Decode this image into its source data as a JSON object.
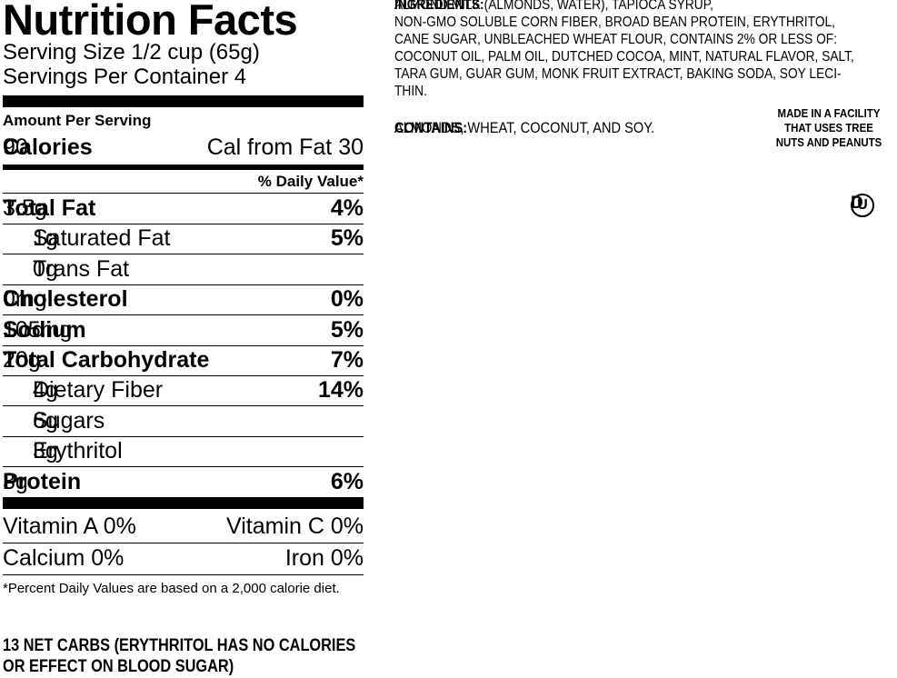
{
  "label": {
    "title": "Nutrition Facts",
    "serving_size": "Serving Size 1/2 cup (65g)",
    "servings_per_container": "Servings Per Container 4",
    "amount_per_serving": "Amount Per Serving",
    "calories": {
      "label": "Calories",
      "value": "90"
    },
    "cal_from_fat": "Cal from Fat 30",
    "daily_value_header": "% Daily Value*",
    "nutrients": [
      {
        "name": "Total Fat",
        "amount": "3.5g",
        "dv": "4%",
        "indent": false
      },
      {
        "name": "Saturated Fat",
        "amount": "1g",
        "dv": "5%",
        "indent": true
      },
      {
        "name": "Trans Fat",
        "amount": "0g",
        "indent": true
      },
      {
        "name": "Cholesterol",
        "amount": "0mg",
        "dv": "0%",
        "indent": false
      },
      {
        "name": "Sodium",
        "amount": "105mg",
        "dv": "5%",
        "indent": false
      },
      {
        "name": "Total Carbohydrate",
        "amount": "20g",
        "dv": "7%",
        "indent": false
      },
      {
        "name": "Dietary Fiber",
        "amount": "4g",
        "dv": "14%",
        "indent": true
      },
      {
        "name": "Sugars",
        "amount": "6g",
        "indent": true
      },
      {
        "name": "Erythritol",
        "amount": "3g",
        "indent": true
      },
      {
        "name": "Protein",
        "amount": "3g",
        "dv": "6%",
        "indent": false
      }
    ],
    "vitamins": [
      [
        "Vitamin A 0%",
        "Vitamin C 0%"
      ],
      [
        "Calcium 0%",
        "Iron 0%"
      ]
    ],
    "footnote": "*Percent Daily Values are based on a 2,000 calorie diet."
  },
  "net_carbs_note": [
    "13 NET CARBS (ERYTHRITOL HAS NO CALORIES",
    "OR EFFECT ON BLOOD SUGAR)"
  ],
  "ingredients": {
    "heading": "INGREDIENTS:",
    "lines": [
      "ALMOND MILK (ALMONDS, WATER), TAPIOCA SYRUP,",
      "NON-GMO SOLUBLE CORN FIBER, BROAD BEAN PROTEIN, ERYTHRITOL,",
      "CANE SUGAR, UNBLEACHED WHEAT FLOUR, CONTAINS 2% OR LESS OF:",
      "COCONUT OIL, PALM OIL, DUTCHED COCOA, MINT, NATURAL FLAVOR, SALT,",
      "TARA GUM, GUAR GUM, MONK FRUIT EXTRACT, BAKING SODA, SOY LECI-",
      "THIN."
    ]
  },
  "contains": {
    "heading": "CONTAINS:",
    "text": "ALMONDS, WHEAT, COCONUT, AND SOY."
  },
  "facility": [
    "MADE IN A FACILITY",
    "THAT USES TREE",
    "NUTS AND PEANUTS"
  ],
  "kosher": {
    "symbol": "U",
    "suffix": "D"
  }
}
